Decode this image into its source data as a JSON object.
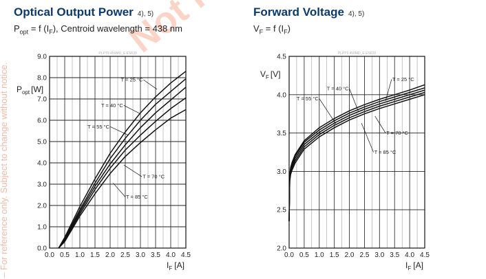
{
  "page": {
    "side_note": "– For reference only. Subject to change without notice.",
    "watermark": "Not release"
  },
  "panels": [
    {
      "title": "Optical Output Power",
      "title_notes": "4),    5)",
      "subtitle_lead": "P",
      "subtitle_lead_sub": "opt",
      "subtitle_rest": "= f (I",
      "subtitle_rest_sub": "F",
      "subtitle_tail": "), Centroid wavelength = 438 nm"
    },
    {
      "title": "Forward Voltage",
      "title_notes": "4),    5)",
      "subtitle_lead": "V",
      "subtitle_lead_sub": "F",
      "subtitle_rest": "= f (I",
      "subtitle_rest_sub": "F",
      "subtitle_tail": ")"
    }
  ],
  "chart_data": [
    {
      "type": "line",
      "code": "PLPT9 450MD_E ES633",
      "ylabel": "P",
      "ylabel_sub": "opt",
      "ylabel_unit": "[W]",
      "xlabel": "I",
      "xlabel_sub": "F",
      "xlabel_unit": "[A]",
      "xlim": [
        0,
        4.5
      ],
      "ylim": [
        0,
        9
      ],
      "xticks": [
        "0.0",
        "0.5",
        "1.0",
        "1.5",
        "2.0",
        "2.5",
        "3.0",
        "3.5",
        "4.0",
        "4.5"
      ],
      "yticks": [
        "0.0",
        "1.0",
        "2.0",
        "3.0",
        "4.0",
        "5.0",
        "6.0",
        "7.0",
        "8.0",
        "9.0"
      ],
      "grid": true,
      "x": [
        0.3,
        0.5,
        1.0,
        1.5,
        2.0,
        2.5,
        3.0,
        3.5,
        4.0,
        4.5
      ],
      "series": [
        {
          "name": "T = 25 °C",
          "values": [
            0.0,
            0.5,
            1.95,
            3.25,
            4.45,
            5.45,
            6.35,
            7.1,
            7.75,
            8.3
          ]
        },
        {
          "name": "T = 40 °C",
          "values": [
            0.0,
            0.45,
            1.8,
            3.05,
            4.2,
            5.15,
            6.0,
            6.75,
            7.35,
            7.95
          ]
        },
        {
          "name": "T = 55 °C",
          "values": [
            0.0,
            0.4,
            1.7,
            2.9,
            3.95,
            4.85,
            5.65,
            6.35,
            6.95,
            7.55
          ]
        },
        {
          "name": "T = 70 °C",
          "values": [
            0.0,
            0.35,
            1.6,
            2.75,
            3.75,
            4.6,
            5.3,
            5.95,
            6.55,
            7.05
          ]
        },
        {
          "name": "T = 85 °C",
          "values": [
            0.0,
            0.3,
            1.5,
            2.55,
            3.5,
            4.3,
            4.95,
            5.55,
            6.1,
            6.5
          ]
        }
      ]
    },
    {
      "type": "line",
      "code": "PLPT9 450MD_E ES633",
      "ylabel": "V",
      "ylabel_sub": "F",
      "ylabel_unit": "[V]",
      "xlabel": "I",
      "xlabel_sub": "F",
      "xlabel_unit": "[A]",
      "xlim": [
        0,
        4.5
      ],
      "ylim": [
        2.0,
        4.5
      ],
      "xticks": [
        "0.0",
        "0.5",
        "1.0",
        "1.5",
        "2.0",
        "2.5",
        "3.0",
        "3.5",
        "4.0",
        "4.5"
      ],
      "yticks": [
        "2.0",
        "2.5",
        "3.0",
        "3.5",
        "4.0",
        "4.5"
      ],
      "grid": true,
      "x": [
        0.0,
        0.02,
        0.05,
        0.1,
        0.2,
        0.5,
        1.0,
        1.5,
        2.0,
        2.5,
        3.0,
        3.5,
        4.0,
        4.5
      ],
      "series": [
        {
          "name": "T = 25 °C",
          "values": [
            2.35,
            2.95,
            3.05,
            3.12,
            3.22,
            3.4,
            3.57,
            3.69,
            3.79,
            3.87,
            3.94,
            4.0,
            4.06,
            4.13
          ]
        },
        {
          "name": "T = 40 °C",
          "values": [
            2.35,
            2.93,
            3.03,
            3.1,
            3.2,
            3.38,
            3.54,
            3.66,
            3.76,
            3.84,
            3.91,
            3.97,
            4.03,
            4.09
          ]
        },
        {
          "name": "T = 55 °C",
          "values": [
            2.35,
            2.91,
            3.0,
            3.07,
            3.17,
            3.35,
            3.51,
            3.63,
            3.73,
            3.81,
            3.88,
            3.94,
            4.0,
            4.06
          ]
        },
        {
          "name": "T = 70 °C",
          "values": [
            2.35,
            2.89,
            2.98,
            3.05,
            3.14,
            3.32,
            3.48,
            3.6,
            3.7,
            3.78,
            3.85,
            3.91,
            3.97,
            4.03
          ]
        },
        {
          "name": "T = 85 °C",
          "values": [
            2.35,
            2.87,
            2.96,
            3.02,
            3.11,
            3.29,
            3.45,
            3.57,
            3.67,
            3.75,
            3.82,
            3.88,
            3.94,
            4.0
          ]
        }
      ]
    }
  ]
}
